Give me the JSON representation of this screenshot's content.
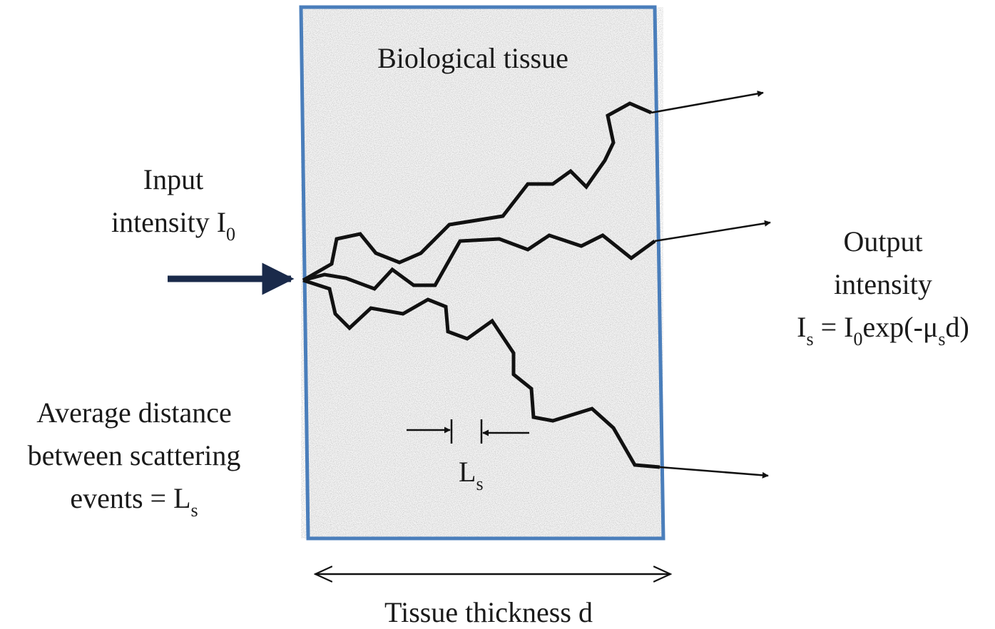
{
  "tissue_label": "Biological tissue",
  "input_label": {
    "line1": "Input",
    "line2": {
      "text": "intensity I",
      "sub": "0"
    }
  },
  "output_label": {
    "line1": "Output",
    "line2": "intensity",
    "line3": [
      {
        "text": "I",
        "sub": "s"
      },
      {
        "text": " = I",
        "sub": "0"
      },
      {
        "text": "exp(-μ",
        "sub": "s"
      },
      {
        "text": "d)"
      }
    ]
  },
  "distance_label": {
    "line1": "Average distance",
    "line2": "between scattering",
    "line3": {
      "text": "events = L",
      "sub": "s"
    }
  },
  "ls_marker": {
    "text": "L",
    "sub": "s"
  },
  "thickness_label": "Tissue thickness d"
}
